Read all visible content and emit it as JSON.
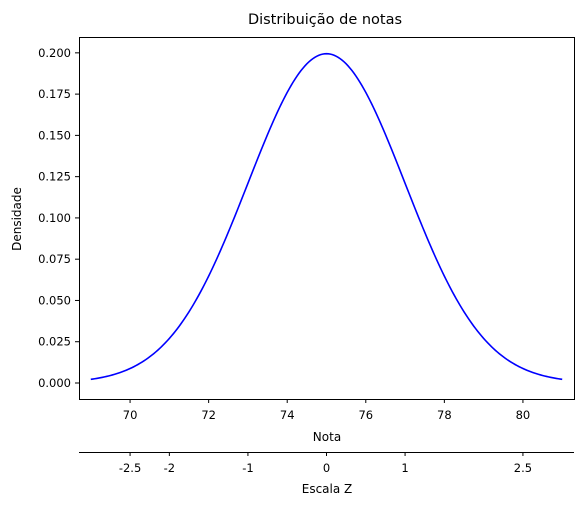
{
  "chart_data": {
    "type": "line",
    "title": "Distribuição de notas",
    "xlabel": "Nota",
    "ylabel": "Densidade",
    "xlim": [
      68.7,
      81.3
    ],
    "ylim": [
      -0.0097,
      0.2096
    ],
    "x_ticks": [
      70,
      72,
      74,
      76,
      78,
      80
    ],
    "x_tick_labels": [
      "70",
      "72",
      "74",
      "76",
      "78",
      "80"
    ],
    "y_ticks": [
      0.0,
      0.025,
      0.05,
      0.075,
      0.1,
      0.125,
      0.15,
      0.175,
      0.2
    ],
    "y_tick_labels": [
      "0.000",
      "0.025",
      "0.050",
      "0.075",
      "0.100",
      "0.125",
      "0.150",
      "0.175",
      "0.200"
    ],
    "grid": false,
    "line_color": "#0000ff",
    "series": [
      {
        "distribution": "normal",
        "mean": 75,
        "std": 2,
        "x": [
          69.0,
          69.5,
          70.0,
          70.5,
          71.0,
          71.5,
          72.0,
          72.5,
          73.0,
          73.5,
          74.0,
          74.5,
          75.0,
          75.5,
          76.0,
          76.5,
          77.0,
          77.5,
          78.0,
          78.5,
          79.0,
          79.5,
          80.0,
          80.5,
          81.0
        ],
        "y": [
          0.0022,
          0.0045,
          0.0088,
          0.0158,
          0.027,
          0.0431,
          0.0648,
          0.0913,
          0.121,
          0.1506,
          0.176,
          0.1933,
          0.1995,
          0.1933,
          0.176,
          0.1506,
          0.121,
          0.0913,
          0.0648,
          0.0431,
          0.027,
          0.0158,
          0.0088,
          0.0045,
          0.0022
        ]
      }
    ],
    "secondary_axis": {
      "label": "Escala Z",
      "position": "bottom",
      "ticks": [
        -2.5,
        -2,
        -1,
        0,
        1,
        2.5
      ],
      "tick_labels": [
        "-2.5",
        "-2",
        "-1",
        "0",
        "1",
        "2.5"
      ]
    }
  }
}
